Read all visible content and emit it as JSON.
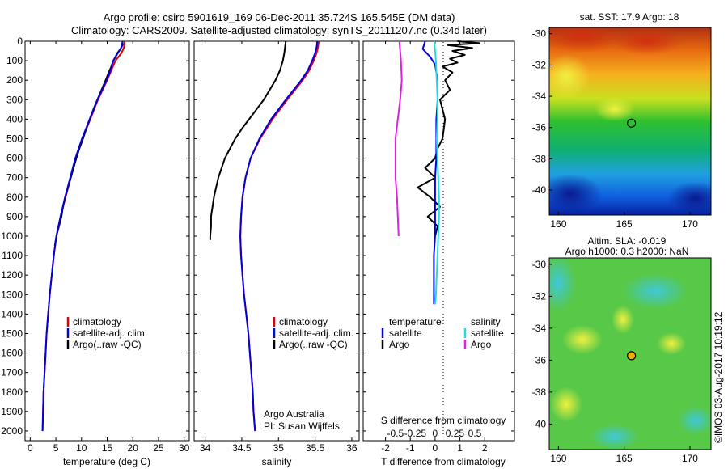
{
  "title": {
    "line1": "Argo profile: csiro 5901619_169 06-Dec-2011 35.724S 165.545E (DM data)",
    "line2": "Climatology: CARS2009. Satellite-adjusted climatology: synTS_20111207.nc (0.34d later)"
  },
  "colors": {
    "climatology": "#e00000",
    "satellite": "#0000e0",
    "argo": "#000000",
    "t_satellite": "#0000e0",
    "s_satellite": "#22dddd",
    "s_argo": "#e020e0"
  },
  "depth_ticks": [
    "0",
    "100",
    "200",
    "300",
    "400",
    "500",
    "600",
    "700",
    "800",
    "900",
    "1000",
    "1100",
    "1200",
    "1300",
    "1400",
    "1500",
    "1600",
    "1700",
    "1800",
    "1900",
    "2000"
  ],
  "temperature_panel": {
    "xlabel": "temperature (deg C)",
    "xticks": [
      "0",
      "5",
      "10",
      "15",
      "20",
      "25",
      "30"
    ],
    "legend": [
      "climatology",
      "satellite-adj. clim.",
      "Argo(..raw -QC)"
    ]
  },
  "salinity_panel": {
    "xlabel": "salinity",
    "xticks": [
      "34",
      "34.5",
      "35",
      "35.5",
      "36"
    ],
    "legend": [
      "climatology",
      "satellite-adj. clim.",
      "Argo(..raw -QC)"
    ],
    "note1": "Argo Australia",
    "note2": "PI: Susan Wijffels"
  },
  "difference_panel": {
    "legend_temp_head": "temperature",
    "legend_sal_head": "salinity",
    "legend_t_sat": "satellite",
    "legend_t_argo": "Argo",
    "legend_s_sat": "satellite",
    "legend_s_argo": "Argo",
    "s_label": "S difference from climatology",
    "s_ticks": [
      "-0.5",
      "-0.25",
      "0",
      "0.25",
      "0.5"
    ],
    "t_label": "T difference from climatology",
    "t_ticks": [
      "-2",
      "-1",
      "0",
      "1",
      "2"
    ]
  },
  "sst_map": {
    "title": "sat. SST: 17.9  Argo: 18",
    "yticks": [
      "-30",
      "-32",
      "-34",
      "-36",
      "-38",
      "-40"
    ],
    "xticks": [
      "160",
      "165",
      "170"
    ]
  },
  "sla_map": {
    "title1": "Altim. SLA: -0.019",
    "title2": "Argo h1000: 0.3 h2000: NaN",
    "yticks": [
      "-30",
      "-32",
      "-34",
      "-36",
      "-38",
      "-40"
    ],
    "xticks": [
      "160",
      "165",
      "170"
    ]
  },
  "stamp": "©IMOS 03-Aug-2017 10:19:12",
  "chart_data": [
    {
      "type": "line",
      "name": "temperature profile",
      "xlabel": "temperature (deg C)",
      "ylabel": "",
      "xlim": [
        -1,
        31
      ],
      "ylim": [
        2050,
        0
      ],
      "series": [
        {
          "name": "climatology",
          "depth": [
            0,
            30,
            60,
            100,
            150,
            200,
            300,
            400,
            500,
            600,
            700,
            800,
            900,
            1000,
            1100,
            1200,
            1300,
            1400,
            1500,
            1600,
            1700,
            1800,
            1900,
            2000
          ],
          "values": [
            18.4,
            18.3,
            17.8,
            16.6,
            15.8,
            15.0,
            13.2,
            11.7,
            10.2,
            8.9,
            7.9,
            6.9,
            5.9,
            5.1,
            4.6,
            4.2,
            3.8,
            3.5,
            3.2,
            3.0,
            2.8,
            2.6,
            2.5,
            2.4
          ]
        },
        {
          "name": "satellite-adj. clim.",
          "depth": [
            0,
            30,
            60,
            100,
            150,
            200,
            300,
            400,
            500,
            600,
            700,
            800,
            900,
            1000,
            1100,
            1200,
            1300,
            1400,
            1500,
            1600,
            1700,
            1800,
            1900,
            2000
          ],
          "values": [
            18.0,
            17.8,
            17.1,
            16.2,
            15.6,
            14.9,
            13.1,
            11.6,
            10.1,
            8.8,
            7.8,
            6.8,
            5.9,
            5.1,
            4.6,
            4.2,
            3.8,
            3.5,
            3.2,
            3.0,
            2.8,
            2.6,
            2.5,
            2.4
          ]
        },
        {
          "name": "Argo(..raw -QC)",
          "depth": [
            0,
            20,
            40,
            60,
            80,
            100,
            130,
            160,
            200,
            250,
            300,
            350,
            400,
            450,
            500,
            550,
            600,
            700,
            800,
            850,
            900,
            950,
            1000,
            1050
          ],
          "values": [
            18.0,
            18.0,
            17.6,
            17.0,
            16.6,
            16.2,
            15.8,
            15.3,
            14.7,
            13.9,
            13.1,
            12.3,
            11.6,
            10.9,
            10.3,
            9.6,
            9.0,
            7.9,
            6.8,
            6.4,
            6.1,
            5.6,
            5.1,
            4.8
          ]
        }
      ]
    },
    {
      "type": "line",
      "name": "salinity profile",
      "xlabel": "salinity",
      "ylabel": "",
      "xlim": [
        33.85,
        36.1
      ],
      "ylim": [
        2050,
        0
      ],
      "series": [
        {
          "name": "climatology",
          "depth": [
            0,
            30,
            60,
            100,
            150,
            200,
            300,
            400,
            500,
            600,
            700,
            800,
            900,
            1000,
            1100,
            1200,
            1300,
            1400,
            1500,
            1600,
            1700,
            1800,
            1900,
            2000
          ],
          "values": [
            35.55,
            35.54,
            35.52,
            35.48,
            35.42,
            35.33,
            35.12,
            34.92,
            34.75,
            34.62,
            34.55,
            34.51,
            34.49,
            34.48,
            34.49,
            34.51,
            34.53,
            34.56,
            34.59,
            34.61,
            34.63,
            34.65,
            34.66,
            34.68
          ]
        },
        {
          "name": "satellite-adj. clim.",
          "depth": [
            0,
            30,
            60,
            100,
            150,
            200,
            300,
            400,
            500,
            600,
            700,
            800,
            900,
            1000,
            1100,
            1200,
            1300,
            1400,
            1500,
            1600,
            1700,
            1800,
            1900,
            2000
          ],
          "values": [
            35.53,
            35.52,
            35.5,
            35.46,
            35.4,
            35.31,
            35.1,
            34.9,
            34.74,
            34.62,
            34.55,
            34.51,
            34.49,
            34.48,
            34.49,
            34.51,
            34.53,
            34.56,
            34.59,
            34.61,
            34.63,
            34.65,
            34.66,
            34.68
          ]
        },
        {
          "name": "Argo(..raw -QC)",
          "depth": [
            0,
            30,
            60,
            100,
            150,
            200,
            250,
            300,
            350,
            400,
            450,
            500,
            550,
            600,
            700,
            800,
            850,
            900,
            950,
            1000,
            1020
          ],
          "values": [
            35.1,
            35.09,
            35.08,
            35.06,
            35.02,
            34.96,
            34.88,
            34.8,
            34.7,
            34.6,
            34.5,
            34.41,
            34.34,
            34.27,
            34.18,
            34.12,
            34.1,
            34.08,
            34.08,
            34.07,
            34.07
          ]
        }
      ]
    },
    {
      "type": "line",
      "name": "difference from climatology",
      "xlabel": "T difference from climatology",
      "ylabel": "",
      "xlim": [
        -2.9,
        3.2
      ],
      "ylim": [
        2050,
        0
      ],
      "series": [
        {
          "name": "T satellite",
          "depth": [
            0,
            40,
            80,
            120,
            200,
            300,
            400,
            500,
            600,
            700,
            800,
            900,
            1000,
            1100,
            1200,
            1300,
            1350
          ],
          "values": [
            -0.4,
            -0.5,
            -0.2,
            0.0,
            0.1,
            0.1,
            0.05,
            0.05,
            0.05,
            0.0,
            0.0,
            0.0,
            0.0,
            -0.05,
            -0.05,
            -0.05,
            -0.05
          ]
        },
        {
          "name": "T Argo",
          "depth": [
            0,
            10,
            20,
            35,
            50,
            70,
            90,
            110,
            130,
            160,
            200,
            250,
            300,
            400,
            500,
            550,
            600,
            650,
            700,
            750,
            800,
            850,
            900,
            950,
            1000
          ],
          "values": [
            0.9,
            1.8,
            0.5,
            1.5,
            0.7,
            1.2,
            0.6,
            0.9,
            0.3,
            0.7,
            0.4,
            0.6,
            0.2,
            0.4,
            0.3,
            0.1,
            0.0,
            -0.4,
            0.0,
            -0.7,
            -0.2,
            0.2,
            -0.3,
            0.1,
            0.0
          ]
        },
        {
          "name": "S satellite",
          "depth": [
            0,
            50,
            100,
            200,
            300,
            400,
            500,
            600,
            700,
            800,
            900,
            1000,
            1100,
            1200,
            1300,
            1350
          ],
          "values": [
            -0.01,
            0.0,
            0.01,
            0.02,
            0.03,
            0.03,
            0.02,
            0.03,
            0.04,
            0.05,
            0.05,
            0.04,
            0.03,
            0.02,
            0.01,
            0.0
          ]
        },
        {
          "name": "S Argo",
          "depth": [
            0,
            50,
            100,
            200,
            300,
            400,
            500,
            600,
            700,
            800,
            900,
            1000
          ],
          "values": [
            -0.45,
            -0.44,
            -0.43,
            -0.42,
            -0.44,
            -0.47,
            -0.5,
            -0.5,
            -0.5,
            -0.48,
            -0.47,
            -0.46
          ]
        }
      ]
    },
    {
      "type": "heatmap",
      "name": "sat. SST map",
      "title": "sat. SST: 17.9  Argo: 18",
      "xlim": [
        159.3,
        171.6
      ],
      "ylim": [
        -41.6,
        -29.6
      ],
      "marker": {
        "lon": 165.55,
        "lat": -35.72
      }
    },
    {
      "type": "heatmap",
      "name": "altimetry SLA map",
      "title": "Altim. SLA: -0.019",
      "xlim": [
        159.3,
        171.6
      ],
      "ylim": [
        -41.6,
        -29.6
      ],
      "marker": {
        "lon": 165.55,
        "lat": -35.72
      }
    }
  ]
}
